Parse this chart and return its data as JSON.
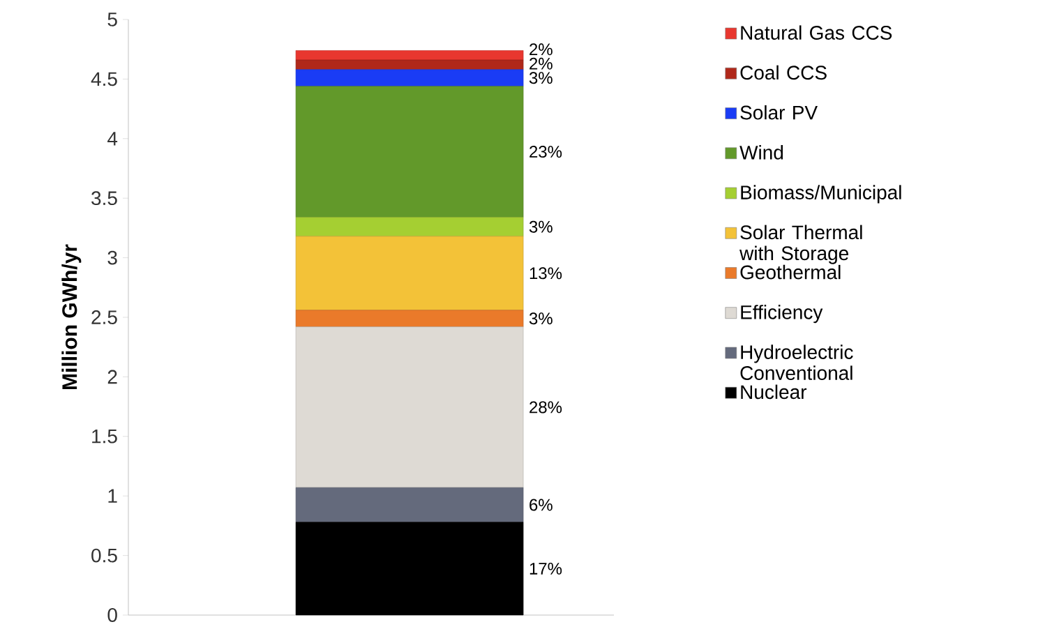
{
  "chart_data": {
    "type": "bar",
    "stacked": true,
    "categories": [
      null
    ],
    "ylabel": "Million GWh/yr",
    "ylim": [
      0,
      5
    ],
    "yticks": [
      0,
      0.5,
      1,
      1.5,
      2,
      2.5,
      3,
      3.5,
      4,
      4.5,
      5
    ],
    "legend": "right",
    "series": [
      {
        "name": "Nuclear",
        "color": "#000000",
        "values": [
          0.78
        ]
      },
      {
        "name": "Hydroelectric Conventional",
        "color": "#646a7c",
        "values": [
          0.29
        ]
      },
      {
        "name": "Efficiency",
        "color": "#dedad4",
        "values": [
          1.35
        ]
      },
      {
        "name": "Geothermal",
        "color": "#ea7a2a",
        "values": [
          0.14
        ]
      },
      {
        "name": "Solar Thermal with Storage",
        "color": "#f3c238",
        "values": [
          0.62
        ]
      },
      {
        "name": "Biomass/Municipal",
        "color": "#a5cf32",
        "values": [
          0.16
        ]
      },
      {
        "name": "Wind",
        "color": "#62992a",
        "values": [
          1.1
        ]
      },
      {
        "name": "Solar PV",
        "color": "#1a3cf5",
        "values": [
          0.14
        ]
      },
      {
        "name": "Coal CCS",
        "color": "#b0281a",
        "values": [
          0.08
        ]
      },
      {
        "name": "Natural Gas CCS",
        "color": "#e8372f",
        "values": [
          0.08
        ]
      }
    ],
    "annotations": [
      "17%",
      "6%",
      "28%",
      "3%",
      "13%",
      "3%",
      "23%",
      "3%",
      "2%",
      "2%"
    ]
  }
}
